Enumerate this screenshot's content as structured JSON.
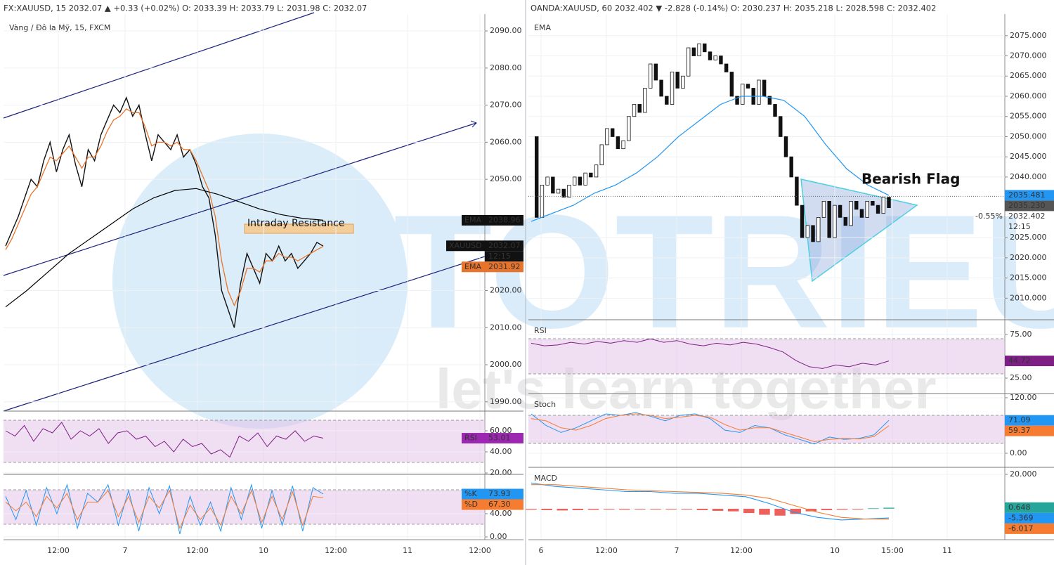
{
  "panels": [
    {
      "header": "FX:XAUUSD, 15  2032.07 ▲ +0.33 (+0.02%)  O: 2033.39  H: 2033.79  L: 2031.98  C: 2032.07",
      "time_labels": [
        "12:00",
        "7",
        "12:00",
        "10",
        "12:00",
        "11",
        "12:00"
      ],
      "annotation": "Intraday Resistance",
      "panes": [
        {
          "title": "Vàng / Đô la Mỹ, 15, FXCM",
          "ylim": [
            1987.5,
            2093.8
          ],
          "yticks": [
            {
              "value": 2090,
              "label": "2090.00"
            },
            {
              "value": 2080,
              "label": "2080.00"
            },
            {
              "value": 2070,
              "label": "2070.00"
            },
            {
              "value": 2060,
              "label": "2060.00"
            },
            {
              "value": 2050,
              "label": "2050.00"
            },
            {
              "value": 2020,
              "label": "2020.00"
            },
            {
              "value": 2010,
              "label": "2010.00"
            },
            {
              "value": 2000,
              "label": "2000.00"
            },
            {
              "value": 1990,
              "label": "1990.00"
            }
          ],
          "series": [
            {
              "style": "line",
              "color": "#111111",
              "width": 1.4,
              "values": [
                2032,
                2036,
                2040,
                2045,
                2050,
                2048,
                2055,
                2060,
                2052,
                2058,
                2062,
                2054,
                2048,
                2058,
                2055,
                2062,
                2066,
                2070,
                2068,
                2072,
                2067,
                2070,
                2062,
                2055,
                2062,
                2060,
                2058,
                2062,
                2056,
                2058,
                2054,
                2048,
                2045,
                2035,
                2020,
                2015,
                2010,
                2022,
                2030,
                2026,
                2022,
                2030,
                2028,
                2032,
                2028,
                2030,
                2026,
                2028,
                2030,
                2033,
                2032
              ]
            },
            {
              "style": "line",
              "color": "#e8742c",
              "width": 1.3,
              "values": [
                2031,
                2034,
                2038,
                2042,
                2046,
                2048,
                2052,
                2056,
                2055,
                2057,
                2059,
                2056,
                2053,
                2056,
                2056,
                2059,
                2063,
                2066,
                2067,
                2069,
                2068,
                2068,
                2064,
                2059,
                2060,
                2060,
                2059,
                2060,
                2058,
                2058,
                2055,
                2051,
                2047,
                2040,
                2028,
                2020,
                2016,
                2020,
                2026,
                2026,
                2025,
                2028,
                2028,
                2030,
                2029,
                2029,
                2028,
                2029,
                2030,
                2031,
                2031.92
              ]
            },
            {
              "style": "line",
              "color": "#000000",
              "width": 1.2,
              "values": [
                2015.6,
                2020,
                2025,
                2030,
                2034,
                2038,
                2042,
                2045,
                2047,
                2047.5,
                2046,
                2044,
                2042,
                2040.5,
                2039.5,
                2038.96
              ]
            }
          ],
          "tags": [
            {
              "title": "EMA",
              "value": 2038.96,
              "color": "#111111"
            },
            {
              "title": "XAUUSD",
              "value": 2032.07,
              "color": "#111111"
            },
            {
              "label": "12:15",
              "color": "#111111"
            },
            {
              "title": "EMA",
              "value": 2031.92,
              "color": "#e8742c"
            }
          ]
        },
        {
          "ylim": [
            18.7,
            78.7
          ],
          "yticks": [
            {
              "value": 60,
              "label": "60.00"
            },
            {
              "value": 40,
              "label": "40.00"
            },
            {
              "value": 20,
              "label": "20.00"
            }
          ],
          "series": [
            {
              "style": "line",
              "color": "#7e1f86",
              "width": 1,
              "values": [
                60,
                55,
                65,
                50,
                62,
                58,
                68,
                52,
                60,
                55,
                62,
                48,
                58,
                60,
                52,
                55,
                45,
                50,
                40,
                52,
                45,
                48,
                38,
                42,
                35,
                55,
                50,
                58,
                45,
                55,
                52,
                60,
                50,
                55,
                53.01
              ]
            }
          ],
          "tags": [
            {
              "title": "RSI",
              "value": 53.01,
              "color": "#9c27b0"
            }
          ]
        },
        {
          "ylim": [
            -4.8,
            107.9
          ],
          "yticks": [
            {
              "value": 40,
              "label": "40.00"
            },
            {
              "value": 0,
              "label": "0.00"
            }
          ],
          "series": [
            {
              "style": "line",
              "color": "#2196f3",
              "width": 1,
              "values": [
                70,
                30,
                80,
                20,
                85,
                40,
                90,
                15,
                75,
                60,
                90,
                20,
                80,
                10,
                85,
                40,
                88,
                5,
                70,
                20,
                60,
                10,
                85,
                30,
                90,
                15,
                80,
                20,
                88,
                10,
                85,
                73.93
              ]
            },
            {
              "style": "line",
              "color": "#f57c30",
              "width": 1,
              "values": [
                60,
                45,
                60,
                35,
                70,
                50,
                75,
                30,
                60,
                60,
                80,
                35,
                70,
                25,
                70,
                50,
                80,
                15,
                55,
                30,
                50,
                20,
                70,
                40,
                80,
                25,
                70,
                30,
                78,
                20,
                70,
                67.3
              ]
            }
          ],
          "tags": [
            {
              "title": "%K",
              "value": 73.93,
              "color": "#2196f3"
            },
            {
              "title": "%D",
              "value": 67.3,
              "label": "67.30",
              "color": "#f57c30"
            }
          ]
        }
      ]
    },
    {
      "header": "OANDA:XAUUSD, 60  2032.402 ▼ -2.828 (-0.14%)  O: 2030.237  H: 2035.218  L: 2028.598  C: 2032.402",
      "time_labels": [
        "6",
        "12:00",
        "7",
        "12:00",
        "10",
        "15:00",
        "11"
      ],
      "annotation": "Bearish Flag",
      "panes": [
        {
          "title": "EMA",
          "ylim": [
            2004.66,
            2079.66
          ],
          "yticks": [
            {
              "value": 2075,
              "label": "2075.000"
            },
            {
              "value": 2070,
              "label": "2070.000"
            },
            {
              "value": 2065,
              "label": "2065.000"
            },
            {
              "value": 2060,
              "label": "2060.000"
            },
            {
              "value": 2055,
              "label": "2055.000"
            },
            {
              "value": 2050,
              "label": "2050.000"
            },
            {
              "value": 2045,
              "label": "2045.000"
            },
            {
              "value": 2040,
              "label": "2040.000"
            },
            {
              "value": 2025,
              "label": "2025.000"
            },
            {
              "value": 2020,
              "label": "2020.000"
            },
            {
              "value": 2015,
              "label": "2015.000"
            },
            {
              "value": 2010,
              "label": "2010.000"
            }
          ],
          "series": [
            {
              "style": "candles",
              "color": "#111111",
              "values": [
                2050,
                2030,
                2038,
                2040,
                2036,
                2037,
                2035,
                2038,
                2040,
                2038,
                2041,
                2040,
                2043,
                2048,
                2052,
                2050,
                2047,
                2049,
                2055,
                2058,
                2056,
                2062,
                2068,
                2064,
                2060,
                2058,
                2066,
                2062,
                2065,
                2072,
                2070,
                2073,
                2071,
                2069,
                2070,
                2068,
                2066,
                2060,
                2058,
                2063,
                2062,
                2058,
                2064,
                2060,
                2058,
                2055,
                2050,
                2045,
                2040,
                2033,
                2025,
                2028,
                2024,
                2030,
                2034,
                2025,
                2033,
                2030,
                2028,
                2034,
                2032,
                2030,
                2034,
                2033,
                2031,
                2035,
                2032.402
              ]
            },
            {
              "style": "line",
              "color": "#2196f3",
              "width": 1.2,
              "values": [
                2029,
                2031,
                2033,
                2036,
                2038,
                2041,
                2045,
                2050,
                2054,
                2058,
                2060,
                2060,
                2059,
                2055,
                2048,
                2042,
                2038,
                2035.481
              ]
            }
          ],
          "tags": [
            {
              "value": 2035.481,
              "color": "#2196f3"
            },
            {
              "value": 2035.23,
              "label": "2035.230",
              "color": "#555555",
              "dotted": true
            },
            {
              "title": "-0.55%",
              "value": 2032.402
            },
            {
              "label": "12:15"
            }
          ]
        },
        {
          "title": "RSI",
          "ylim": [
            7.3,
            91.9
          ],
          "yticks": [
            {
              "value": 75,
              "label": "75.00"
            },
            {
              "value": 25,
              "label": "25.00"
            }
          ],
          "series": [
            {
              "style": "line",
              "color": "#7e1f86",
              "width": 1,
              "values": [
                65,
                62,
                63,
                66,
                64,
                67,
                65,
                68,
                66,
                70,
                66,
                68,
                64,
                62,
                65,
                63,
                66,
                64,
                60,
                55,
                45,
                38,
                36,
                40,
                38,
                42,
                40,
                44.72
              ]
            }
          ],
          "tags": [
            {
              "value": 44.72,
              "color": "#7e1f86"
            }
          ]
        },
        {
          "title": "Stoch",
          "ylim": [
            -30.4,
            129.1
          ],
          "yticks": [
            {
              "value": 120,
              "label": "120.00"
            },
            {
              "value": 0,
              "label": "0.00"
            }
          ],
          "series": [
            {
              "style": "line",
              "color": "#2196f3",
              "width": 1,
              "values": [
                85,
                60,
                45,
                55,
                70,
                85,
                82,
                88,
                80,
                70,
                82,
                85,
                75,
                50,
                45,
                60,
                55,
                40,
                30,
                20,
                35,
                30,
                32,
                40,
                71.09
              ]
            },
            {
              "style": "line",
              "color": "#f57c30",
              "width": 1,
              "values": [
                75,
                70,
                55,
                50,
                60,
                75,
                82,
                85,
                82,
                75,
                78,
                82,
                78,
                62,
                50,
                55,
                55,
                45,
                35,
                25,
                30,
                32,
                31,
                36,
                59.37
              ]
            }
          ],
          "tags": [
            {
              "value": 71.09,
              "color": "#2196f3"
            },
            {
              "value": 59.37,
              "color": "#f57c30"
            }
          ]
        },
        {
          "title": "MACD",
          "ylim": [
            -18,
            24.1
          ],
          "yticks": [
            {
              "value": 20,
              "label": "20.000"
            }
          ],
          "series": [
            {
              "style": "hist",
              "color": "#e53935",
              "values": [
                -0.5,
                -0.8,
                -1,
                -0.8,
                -0.6,
                -0.4,
                -0.5,
                -0.3,
                -0.3,
                -0.2,
                -0.3,
                -0.8,
                -1.2,
                -1.5,
                -2.5,
                -3.5,
                -4,
                -3,
                -1.5,
                -0.8,
                -0.5,
                -0.2,
                0.3,
                0.648
              ]
            },
            {
              "style": "line",
              "color": "#2196f3",
              "width": 1.1,
              "values": [
                15,
                13,
                12,
                11,
                10,
                10,
                9,
                9,
                8,
                7,
                3,
                -2,
                -5,
                -6.5,
                -6,
                -5.369
              ]
            },
            {
              "style": "line",
              "color": "#f57c30",
              "width": 1.1,
              "values": [
                14,
                14,
                13,
                12,
                11,
                10.5,
                10,
                9.5,
                9,
                8,
                6,
                2,
                -2,
                -5,
                -6,
                -6.017
              ]
            }
          ],
          "tags": [
            {
              "value": 0.648,
              "label": "0.648",
              "color": "#26a69a"
            },
            {
              "value": -5.369,
              "label": "-5.369",
              "color": "#2196f3"
            },
            {
              "value": -6.017,
              "label": "-6.017",
              "color": "#f57c30"
            }
          ]
        }
      ]
    }
  ],
  "watermark": {
    "brand": "TOTRIEU",
    "slogan": "let's learn together"
  }
}
